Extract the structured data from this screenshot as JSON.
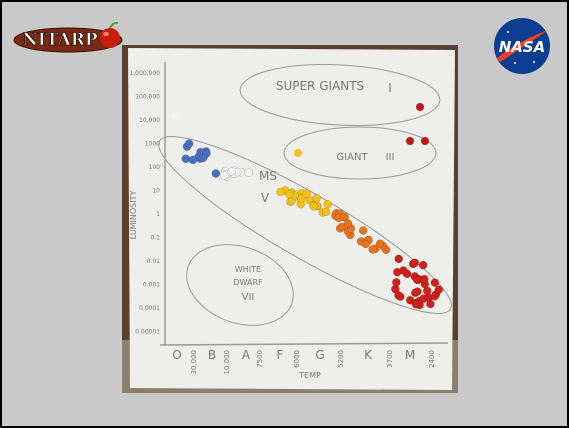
{
  "logos": {
    "left": "NITARP",
    "right": "NASA"
  },
  "photo": {
    "regions": {
      "supergiants": [
        "SUPER GIANTS",
        "I"
      ],
      "giants": [
        "GIANT",
        "III"
      ],
      "main_sequence": [
        "MS",
        "V"
      ],
      "white_dwarfs": [
        "WHITE",
        "DWARF",
        "VII"
      ]
    },
    "y_axis": {
      "label": "LUMINOSITY",
      "ticks": [
        "1,000,000",
        "100,000",
        "10,000",
        "1000",
        "100",
        "10",
        "1",
        "0.1",
        "0.01",
        "0.001",
        "0.0001",
        "0.00001"
      ]
    },
    "x_axis": {
      "label": "TEMP",
      "classes": [
        "O",
        "B",
        "A",
        "F",
        "G",
        "K",
        "M"
      ],
      "temps": [
        "30,000",
        "10,000",
        "7500",
        "6000",
        "5200",
        "3700",
        "2400"
      ]
    }
  }
}
